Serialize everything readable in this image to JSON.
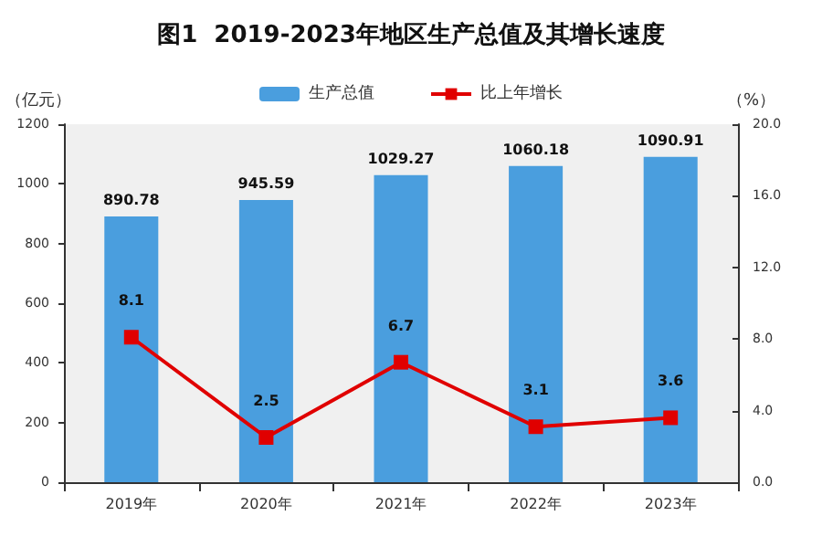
{
  "chart_data": {
    "type": "bar",
    "title": "图1  2019-2023年地区生产总值及其增长速度",
    "categories": [
      "2019年",
      "2020年",
      "2021年",
      "2022年",
      "2023年"
    ],
    "series": [
      {
        "name": "生产总值",
        "color": "#4a9ede",
        "values": [
          890.78,
          945.59,
          1029.27,
          1060.18,
          1090.91
        ]
      },
      {
        "name": "比上年增长",
        "type": "line",
        "axis": "y2",
        "color": "#e00000",
        "values": [
          8.1,
          2.5,
          6.7,
          3.1,
          3.6
        ]
      }
    ],
    "ylabel": "（亿元）",
    "y2label": "（%）",
    "ylim": [
      0,
      1200
    ],
    "yticks": [
      0,
      200,
      400,
      600,
      800,
      1000,
      1200
    ],
    "y2lim": [
      0,
      20
    ],
    "y2ticks": [
      {
        "value": 0,
        "label": "0.0"
      },
      {
        "value": 4,
        "label": "4.0"
      },
      {
        "value": 8,
        "label": "8.0"
      },
      {
        "value": 12,
        "label": "12.0"
      },
      {
        "value": 16,
        "label": "16.0"
      },
      {
        "value": 20,
        "label": "20.0"
      }
    ],
    "data_labels": true,
    "legend": "top",
    "grid": false,
    "marker": "square"
  }
}
